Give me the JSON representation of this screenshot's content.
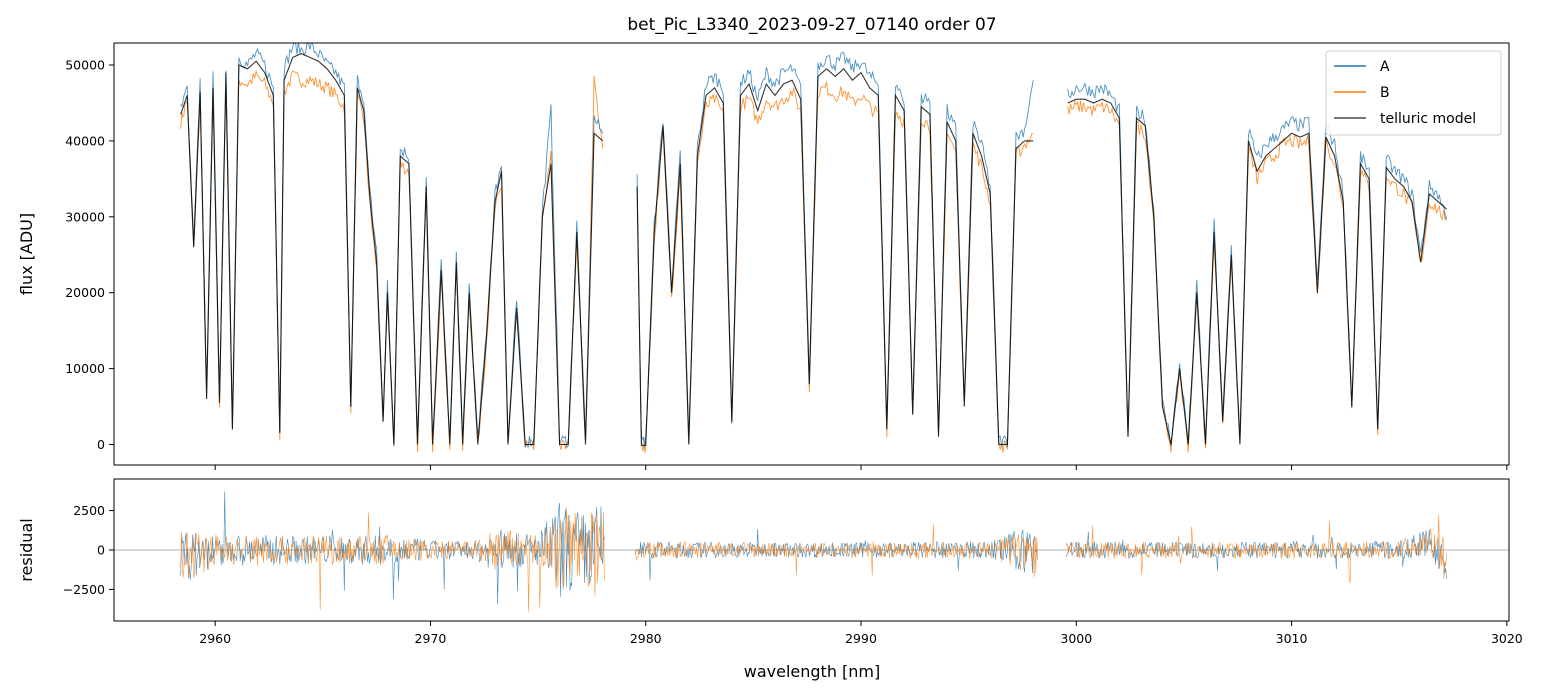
{
  "chart_data": {
    "type": "line",
    "title": "bet_Pic_L3340_2023-09-27_07140  order 07",
    "xlabel": "wavelength [nm]",
    "xlim": [
      2955.3,
      3020.1
    ],
    "xticks": [
      2960,
      2970,
      2980,
      2990,
      3000,
      3010,
      3020
    ],
    "xtick_labels": [
      "2960",
      "2970",
      "2980",
      "2990",
      "3000",
      "3010",
      "3020"
    ],
    "colors": {
      "A": "#1f77b4",
      "B": "#ff7f0e",
      "telluric model": "#000000"
    },
    "legend": {
      "placement": "top-right",
      "entries": [
        "A",
        "B",
        "telluric model"
      ]
    },
    "panels": [
      {
        "name": "flux",
        "ylabel": "flux [ADU]",
        "ylim": [
          -2700,
          52900
        ],
        "yticks": [
          0,
          10000,
          20000,
          30000,
          40000,
          50000
        ],
        "ytick_labels": [
          "0",
          "10000",
          "20000",
          "30000",
          "40000",
          "50000"
        ],
        "segments": [
          {
            "x": [
              2958.4,
              2958.7,
              2959.0,
              2959.3,
              2959.6,
              2959.9,
              2960.2,
              2960.5,
              2960.8,
              2961.1,
              2961.5,
              2961.9,
              2962.3,
              2962.7,
              2963.0,
              2963.2,
              2963.6,
              2964.0,
              2964.4,
              2964.8,
              2965.2,
              2965.6,
              2966.0,
              2966.3,
              2966.6,
              2966.9,
              2967.2,
              2967.5,
              2967.8,
              2968.0,
              2968.3,
              2968.6,
              2969.0,
              2969.4,
              2969.8,
              2970.1,
              2970.5,
              2970.9,
              2971.2,
              2971.5,
              2971.8,
              2972.2,
              2972.6,
              2973.0,
              2973.3,
              2973.6,
              2974.0,
              2974.4,
              2974.8,
              2975.2,
              2975.6,
              2976.0,
              2976.4,
              2976.8,
              2977.2,
              2977.6,
              2978.0
            ],
            "model": [
              43500,
              46000,
              26000,
              46500,
              6000,
              47000,
              5500,
              49000,
              2000,
              50000,
              49500,
              50500,
              49000,
              46000,
              1500,
              48000,
              51000,
              51500,
              51000,
              50500,
              49500,
              48000,
              46000,
              5000,
              47000,
              44000,
              32000,
              24000,
              3000,
              20000,
              0,
              38000,
              37000,
              0,
              34000,
              0,
              23000,
              0,
              24000,
              0,
              20000,
              0,
              14000,
              32000,
              36000,
              0,
              18000,
              0,
              0,
              30000,
              37000,
              0,
              0,
              28000,
              0,
              41000,
              40000
            ],
            "A": [
              44000,
              47000,
              27000,
              47500,
              6500,
              48500,
              6000,
              50000,
              2500,
              51000,
              50000,
              51500,
              50000,
              47000,
              2000,
              49500,
              52500,
              52000,
              52500,
              51500,
              50000,
              49000,
              47000,
              5500,
              48000,
              45000,
              33000,
              25000,
              3500,
              21000,
              500,
              39000,
              38000,
              500,
              35000,
              500,
              24000,
              500,
              25000,
              500,
              21000,
              500,
              15000,
              33000,
              37000,
              500,
              19000,
              500,
              500,
              31000,
              44000,
              500,
              500,
              29000,
              500,
              43000,
              41000
            ],
            "B": [
              42500,
              45500,
              25500,
              45500,
              5500,
              46500,
              5000,
              47500,
              1800,
              48000,
              47500,
              48500,
              47500,
              45000,
              1300,
              46500,
              48500,
              48000,
              48000,
              47500,
              47000,
              46000,
              44500,
              4800,
              45500,
              43000,
              31000,
              23000,
              2800,
              19500,
              -200,
              37000,
              36000,
              -200,
              33000,
              -200,
              22000,
              -200,
              23500,
              -200,
              19500,
              -200,
              13500,
              31000,
              34000,
              -200,
              17500,
              -200,
              -200,
              29500,
              38000,
              -200,
              -200,
              27500,
              -200,
              48000,
              39000
            ]
          },
          {
            "x": [
              2979.6,
              2979.8,
              2980.0,
              2980.4,
              2980.8,
              2981.2,
              2981.6,
              2982.0,
              2982.4,
              2982.8,
              2983.2,
              2983.6,
              2984.0,
              2984.4,
              2984.8,
              2985.2,
              2985.6,
              2986.0,
              2986.4,
              2986.8,
              2987.2,
              2987.6,
              2988.0,
              2988.4,
              2988.8,
              2989.2,
              2989.6,
              2990.0,
              2990.4,
              2990.8,
              2991.2,
              2991.6,
              2992.0,
              2992.4,
              2992.8,
              2993.2,
              2993.6,
              2994.0,
              2994.4,
              2994.8,
              2995.2,
              2995.6,
              2996.0,
              2996.4,
              2996.8,
              2997.2,
              2997.6,
              2998.0
            ],
            "model": [
              34000,
              -100,
              -100,
              28000,
              42000,
              20000,
              37000,
              0,
              38000,
              46000,
              47000,
              45000,
              3000,
              46000,
              47500,
              44000,
              47500,
              46000,
              47500,
              48000,
              45500,
              8000,
              48500,
              49500,
              48500,
              49500,
              48000,
              49000,
              47000,
              46000,
              2000,
              46000,
              44000,
              4000,
              44500,
              43500,
              1000,
              42500,
              40000,
              5000,
              41000,
              38000,
              33000,
              0,
              0,
              39000,
              40000,
              40000
            ],
            "A": [
              35000,
              400,
              400,
              29000,
              43000,
              21000,
              38000,
              500,
              39000,
              47500,
              48500,
              47000,
              3500,
              47500,
              49000,
              45500,
              49000,
              47500,
              49000,
              49500,
              47000,
              8500,
              50000,
              51000,
              50000,
              51000,
              49500,
              50500,
              48500,
              47500,
              2500,
              47500,
              45500,
              4500,
              46000,
              45000,
              1500,
              44000,
              41500,
              5500,
              42500,
              39500,
              34000,
              500,
              500,
              40500,
              41500,
              48000
            ],
            "B": [
              33000,
              -200,
              -200,
              27000,
              41000,
              19500,
              36000,
              -200,
              37000,
              44500,
              45500,
              43500,
              2800,
              44500,
              45500,
              42500,
              45500,
              44500,
              45500,
              46500,
              44000,
              7800,
              46500,
              47000,
              46000,
              46500,
              45000,
              46000,
              44500,
              43500,
              1800,
              44000,
              42500,
              3800,
              43000,
              42000,
              800,
              41000,
              38500,
              4800,
              39500,
              36500,
              32000,
              -200,
              -200,
              38000,
              39500,
              41000
            ]
          },
          {
            "x": [
              2999.6,
              3000.0,
              3000.4,
              3000.8,
              3001.2,
              3001.6,
              3002.0,
              3002.4,
              3002.8,
              3003.2,
              3003.6,
              3004.0,
              3004.4,
              3004.8,
              3005.2,
              3005.6,
              3006.0,
              3006.4,
              3006.8,
              3007.2,
              3007.6,
              3008.0,
              3008.4,
              3008.8,
              3009.2,
              3009.6,
              3010.0,
              3010.4,
              3010.8,
              3011.2,
              3011.6,
              3012.0,
              3012.4,
              3012.8,
              3013.2,
              3013.6,
              3014.0,
              3014.4,
              3014.8,
              3015.2,
              3015.6,
              3016.0,
              3016.4,
              3016.8,
              3017.2
            ],
            "model": [
              45000,
              45500,
              45500,
              45000,
              45500,
              45000,
              43000,
              1000,
              43000,
              42000,
              30000,
              5000,
              0,
              10000,
              0,
              20000,
              0,
              28000,
              3000,
              25000,
              0,
              40000,
              36000,
              38000,
              39000,
              40000,
              41000,
              40500,
              41000,
              20000,
              40500,
              38000,
              32000,
              5000,
              37000,
              35000,
              2000,
              36500,
              35000,
              34000,
              32000,
              24000,
              33000,
              32000,
              31000
            ],
            "A": [
              46000,
              47000,
              47000,
              46500,
              47000,
              46000,
              44000,
              1500,
              44000,
              43000,
              31000,
              5500,
              500,
              10500,
              500,
              21000,
              500,
              29000,
              3500,
              26000,
              500,
              41500,
              37500,
              39500,
              40500,
              41500,
              42500,
              42000,
              42500,
              21000,
              42000,
              39500,
              33000,
              5500,
              38000,
              36000,
              2500,
              37500,
              36000,
              35000,
              33000,
              25000,
              34000,
              33000,
              30000
            ],
            "B": [
              44000,
              44500,
              44500,
              44000,
              44500,
              44000,
              42000,
              800,
              42000,
              41000,
              29500,
              4800,
              -200,
              9500,
              -200,
              19500,
              -200,
              27500,
              2800,
              24500,
              -200,
              39000,
              35000,
              37000,
              38000,
              39500,
              40000,
              39500,
              40000,
              19500,
              40000,
              37000,
              31500,
              4800,
              36000,
              34000,
              1800,
              35500,
              34000,
              33000,
              31000,
              23500,
              32000,
              31000,
              29500
            ]
          }
        ]
      },
      {
        "name": "residual",
        "ylabel": "residual",
        "ylim": [
          -4500,
          4500
        ],
        "yticks": [
          -2500,
          0,
          2500
        ],
        "ytick_labels": [
          "−2500",
          "0",
          "2500"
        ],
        "reference_line": 0,
        "envelope": {
          "x": [
            2958.4,
            2960,
            2964,
            2968,
            2970,
            2972,
            2973,
            2975,
            2976,
            2977,
            2978,
            2979.6,
            2984,
            2990,
            2996,
            2998,
            2999.6,
            3005,
            3010,
            3015,
            3016.5,
            3017.2
          ],
          "amplitude": [
            2500,
            1500,
            1300,
            1400,
            900,
            800,
            2000,
            1500,
            4500,
            3500,
            4500,
            800,
            700,
            700,
            800,
            2500,
            800,
            700,
            800,
            800,
            1300,
            2500
          ],
          "offset": [
            -500,
            0,
            0,
            0,
            0,
            0,
            0,
            0,
            0,
            0,
            0,
            0,
            0,
            0,
            0,
            0,
            0,
            0,
            0,
            0,
            500,
            -1000
          ]
        }
      }
    ]
  }
}
